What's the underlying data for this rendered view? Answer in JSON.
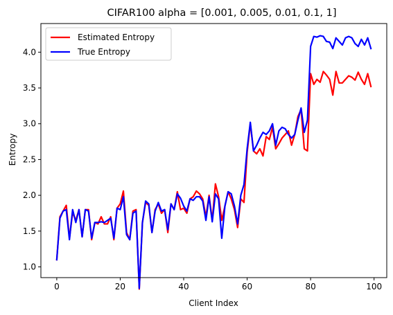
{
  "chart_data": {
    "type": "line",
    "title": "CIFAR100 alpha = [0.001, 0.005, 0.01, 0.1, 1]",
    "xlabel": "Client Index",
    "ylabel": "Entropy",
    "xlim": [
      -5,
      104
    ],
    "ylim": [
      0.85,
      4.4
    ],
    "xticks": [
      0,
      20,
      40,
      60,
      80,
      100
    ],
    "yticks": [
      1.0,
      1.5,
      2.0,
      2.5,
      3.0,
      3.5,
      4.0
    ],
    "ytick_labels": [
      "1.0",
      "1.5",
      "2.0",
      "2.5",
      "3.0",
      "3.5",
      "4.0"
    ],
    "grid": false,
    "legend_position": "upper-left",
    "x": [
      0,
      1,
      2,
      3,
      4,
      5,
      6,
      7,
      8,
      9,
      10,
      11,
      12,
      13,
      14,
      15,
      16,
      17,
      18,
      19,
      20,
      21,
      22,
      23,
      24,
      25,
      26,
      27,
      28,
      29,
      30,
      31,
      32,
      33,
      34,
      35,
      36,
      37,
      38,
      39,
      40,
      41,
      42,
      43,
      44,
      45,
      46,
      47,
      48,
      49,
      50,
      51,
      52,
      53,
      54,
      55,
      56,
      57,
      58,
      59,
      60,
      61,
      62,
      63,
      64,
      65,
      66,
      67,
      68,
      69,
      70,
      71,
      72,
      73,
      74,
      75,
      76,
      77,
      78,
      79,
      80,
      81,
      82,
      83,
      84,
      85,
      86,
      87,
      88,
      89,
      90,
      91,
      92,
      93,
      94,
      95,
      96,
      97,
      98,
      99
    ],
    "series": [
      {
        "name": "Estimated Entropy",
        "color": "#ff0000",
        "values": [
          1.1,
          1.7,
          1.78,
          1.86,
          1.4,
          1.76,
          1.65,
          1.8,
          1.42,
          1.8,
          1.8,
          1.38,
          1.62,
          1.6,
          1.7,
          1.6,
          1.6,
          1.7,
          1.38,
          1.82,
          1.88,
          2.06,
          1.48,
          1.38,
          1.78,
          1.8,
          0.69,
          1.62,
          1.9,
          1.86,
          1.48,
          1.8,
          1.88,
          1.75,
          1.8,
          1.48,
          1.88,
          1.8,
          2.05,
          1.8,
          1.82,
          1.75,
          1.95,
          1.98,
          2.06,
          2.02,
          1.95,
          1.7,
          2.0,
          1.65,
          2.16,
          1.98,
          1.65,
          1.85,
          2.05,
          1.95,
          1.8,
          1.55,
          1.95,
          1.9,
          2.6,
          3.0,
          2.62,
          2.58,
          2.65,
          2.55,
          2.82,
          2.78,
          2.95,
          2.65,
          2.72,
          2.8,
          2.85,
          2.9,
          2.7,
          2.85,
          3.1,
          3.2,
          2.65,
          2.62,
          3.7,
          3.55,
          3.62,
          3.58,
          3.73,
          3.68,
          3.62,
          3.4,
          3.73,
          3.57,
          3.57,
          3.62,
          3.67,
          3.65,
          3.61,
          3.72,
          3.62,
          3.55,
          3.7,
          3.52
        ]
      },
      {
        "name": "True Entropy",
        "color": "#0000ff",
        "values": [
          1.1,
          1.68,
          1.78,
          1.8,
          1.38,
          1.8,
          1.62,
          1.8,
          1.42,
          1.8,
          1.78,
          1.4,
          1.62,
          1.62,
          1.63,
          1.62,
          1.65,
          1.68,
          1.4,
          1.82,
          1.8,
          1.98,
          1.45,
          1.38,
          1.75,
          1.78,
          0.7,
          1.62,
          1.92,
          1.88,
          1.48,
          1.78,
          1.9,
          1.78,
          1.8,
          1.52,
          1.88,
          1.8,
          2.02,
          1.96,
          1.85,
          1.78,
          1.95,
          1.93,
          1.98,
          1.98,
          1.92,
          1.65,
          1.98,
          1.63,
          2.02,
          1.95,
          1.4,
          1.85,
          2.05,
          2.02,
          1.85,
          1.6,
          2.0,
          2.15,
          2.65,
          3.02,
          2.62,
          2.7,
          2.8,
          2.88,
          2.85,
          2.9,
          3.0,
          2.7,
          2.9,
          2.95,
          2.93,
          2.85,
          2.8,
          2.85,
          3.05,
          3.22,
          2.88,
          3.05,
          4.08,
          4.22,
          4.21,
          4.23,
          4.22,
          4.15,
          4.14,
          4.05,
          4.2,
          4.15,
          4.1,
          4.2,
          4.22,
          4.2,
          4.12,
          4.08,
          4.18,
          4.1,
          4.2,
          4.05
        ]
      }
    ]
  }
}
